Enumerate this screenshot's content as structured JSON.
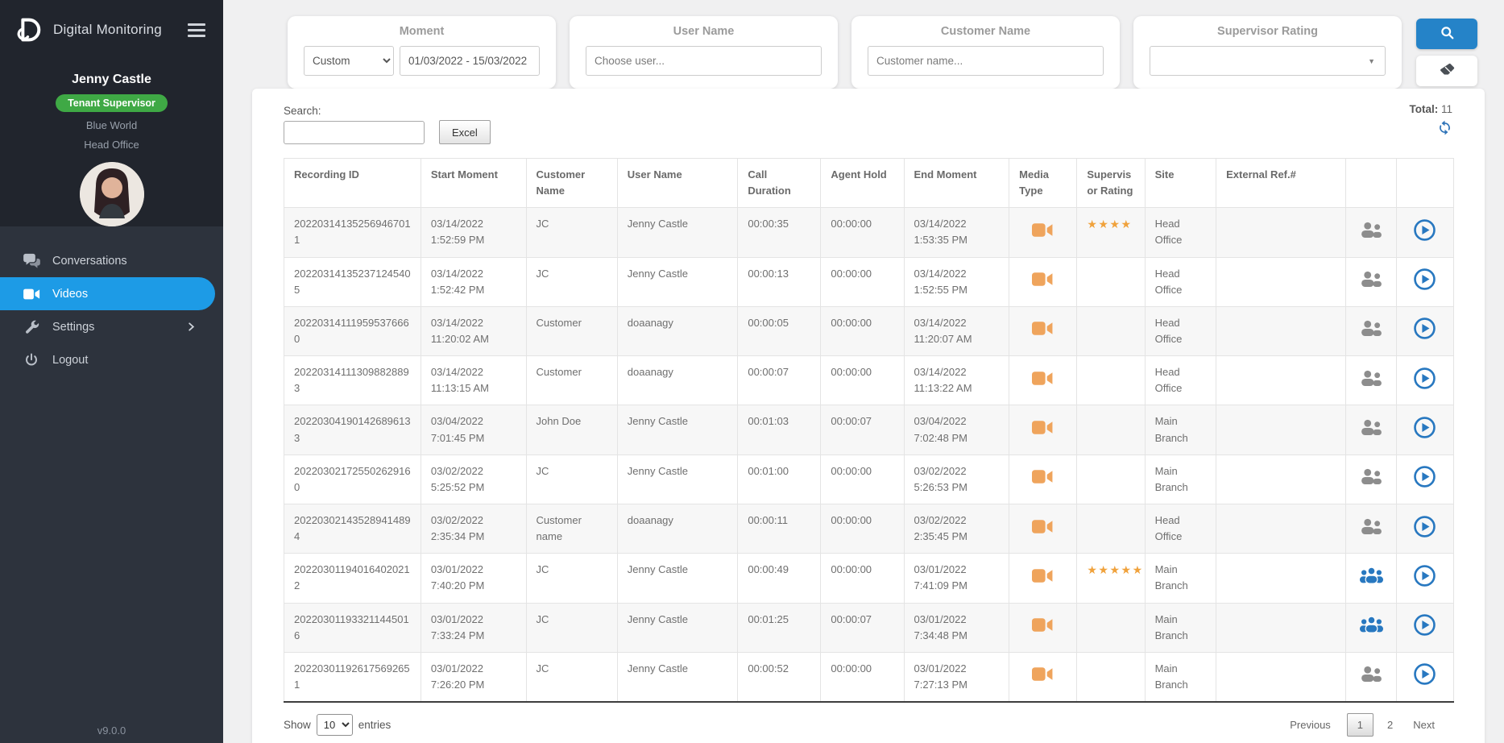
{
  "app": {
    "title": "Digital Monitoring",
    "version": "v9.0.0"
  },
  "sidebar": {
    "user": {
      "name": "Jenny Castle",
      "role_badge": "Tenant Supervisor",
      "tenant": "Blue World",
      "site": "Head Office"
    },
    "menu": [
      {
        "label": "Conversations",
        "icon": "comments-icon",
        "active": false
      },
      {
        "label": "Videos",
        "icon": "video-icon",
        "active": true
      },
      {
        "label": "Settings",
        "icon": "wrench-icon",
        "active": false,
        "has_submenu": true
      },
      {
        "label": "Logout",
        "icon": "power-icon",
        "active": false
      }
    ]
  },
  "filters": {
    "moment": {
      "label": "Moment",
      "preset": "Custom",
      "date_range": "01/03/2022 - 15/03/2022"
    },
    "user_name": {
      "label": "User Name",
      "placeholder": "Choose user..."
    },
    "customer_name": {
      "label": "Customer Name",
      "placeholder": "Customer name..."
    },
    "supervisor_rating": {
      "label": "Supervisor Rating",
      "value": ""
    }
  },
  "colors": {
    "accent_blue": "#1d9be6",
    "button_blue": "#2583c8",
    "badge_green": "#3fa945",
    "icon_orange": "#efa45c",
    "star_orange": "#f0a23c",
    "link_blue": "#2878c0"
  },
  "table": {
    "search_label": "Search:",
    "search_value": "",
    "excel_button": "Excel",
    "total_label": "Total:",
    "total_value": "11",
    "columns": [
      "Recording ID",
      "Start Moment",
      "Customer Name",
      "User Name",
      "Call Duration",
      "Agent Hold",
      "End Moment",
      "Media Type",
      "Supervisor Rating",
      "Site",
      "External Ref.#",
      "",
      ""
    ],
    "rows": [
      {
        "recording_id": "202203141352569467011",
        "start_date": "03/14/2022",
        "start_time": "1:52:59 PM",
        "customer_name": "JC",
        "user_name": "Jenny Castle",
        "call_duration": "00:00:35",
        "agent_hold": "00:00:00",
        "end_date": "03/14/2022",
        "end_time": "1:53:35 PM",
        "media_type": "video",
        "supervisor_rating": 4,
        "site": "Head Office",
        "external_ref": "",
        "participants": "pair"
      },
      {
        "recording_id": "202203141352371245405",
        "start_date": "03/14/2022",
        "start_time": "1:52:42 PM",
        "customer_name": "JC",
        "user_name": "Jenny Castle",
        "call_duration": "00:00:13",
        "agent_hold": "00:00:00",
        "end_date": "03/14/2022",
        "end_time": "1:52:55 PM",
        "media_type": "video",
        "supervisor_rating": 0,
        "site": "Head Office",
        "external_ref": "",
        "participants": "pair"
      },
      {
        "recording_id": "202203141119595376660",
        "start_date": "03/14/2022",
        "start_time": "11:20:02 AM",
        "customer_name": "Customer",
        "user_name": "doaanagy",
        "call_duration": "00:00:05",
        "agent_hold": "00:00:00",
        "end_date": "03/14/2022",
        "end_time": "11:20:07 AM",
        "media_type": "video",
        "supervisor_rating": 0,
        "site": "Head Office",
        "external_ref": "",
        "participants": "pair"
      },
      {
        "recording_id": "202203141113098828893",
        "start_date": "03/14/2022",
        "start_time": "11:13:15 AM",
        "customer_name": "Customer",
        "user_name": "doaanagy",
        "call_duration": "00:00:07",
        "agent_hold": "00:00:00",
        "end_date": "03/14/2022",
        "end_time": "11:13:22 AM",
        "media_type": "video",
        "supervisor_rating": 0,
        "site": "Head Office",
        "external_ref": "",
        "participants": "pair"
      },
      {
        "recording_id": "202203041901426896133",
        "start_date": "03/04/2022",
        "start_time": "7:01:45 PM",
        "customer_name": "John Doe",
        "user_name": "Jenny Castle",
        "call_duration": "00:01:03",
        "agent_hold": "00:00:07",
        "end_date": "03/04/2022",
        "end_time": "7:02:48 PM",
        "media_type": "video",
        "supervisor_rating": 0,
        "site": "Main Branch",
        "external_ref": "",
        "participants": "pair"
      },
      {
        "recording_id": "202203021725502629160",
        "start_date": "03/02/2022",
        "start_time": "5:25:52 PM",
        "customer_name": "JC",
        "user_name": "Jenny Castle",
        "call_duration": "00:01:00",
        "agent_hold": "00:00:00",
        "end_date": "03/02/2022",
        "end_time": "5:26:53 PM",
        "media_type": "video",
        "supervisor_rating": 0,
        "site": "Main Branch",
        "external_ref": "",
        "participants": "pair"
      },
      {
        "recording_id": "202203021435289414894",
        "start_date": "03/02/2022",
        "start_time": "2:35:34 PM",
        "customer_name": "Customer name",
        "user_name": "doaanagy",
        "call_duration": "00:00:11",
        "agent_hold": "00:00:00",
        "end_date": "03/02/2022",
        "end_time": "2:35:45 PM",
        "media_type": "video",
        "supervisor_rating": 0,
        "site": "Head Office",
        "external_ref": "",
        "participants": "pair"
      },
      {
        "recording_id": "202203011940164020212",
        "start_date": "03/01/2022",
        "start_time": "7:40:20 PM",
        "customer_name": "JC",
        "user_name": "Jenny Castle",
        "call_duration": "00:00:49",
        "agent_hold": "00:00:00",
        "end_date": "03/01/2022",
        "end_time": "7:41:09 PM",
        "media_type": "video",
        "supervisor_rating": 5,
        "site": "Main Branch",
        "external_ref": "",
        "participants": "group"
      },
      {
        "recording_id": "202203011933211445016",
        "start_date": "03/01/2022",
        "start_time": "7:33:24 PM",
        "customer_name": "JC",
        "user_name": "Jenny Castle",
        "call_duration": "00:01:25",
        "agent_hold": "00:00:07",
        "end_date": "03/01/2022",
        "end_time": "7:34:48 PM",
        "media_type": "video",
        "supervisor_rating": 0,
        "site": "Main Branch",
        "external_ref": "",
        "participants": "group"
      },
      {
        "recording_id": "202203011926175692651",
        "start_date": "03/01/2022",
        "start_time": "7:26:20 PM",
        "customer_name": "JC",
        "user_name": "Jenny Castle",
        "call_duration": "00:00:52",
        "agent_hold": "00:00:00",
        "end_date": "03/01/2022",
        "end_time": "7:27:13 PM",
        "media_type": "video",
        "supervisor_rating": 0,
        "site": "Main Branch",
        "external_ref": "",
        "participants": "pair"
      }
    ],
    "footer": {
      "show_label": "Show",
      "page_size": "10",
      "entries_label": "entries",
      "previous_label": "Previous",
      "pages": [
        "1",
        "2"
      ],
      "current_page": "1",
      "next_label": "Next"
    }
  }
}
